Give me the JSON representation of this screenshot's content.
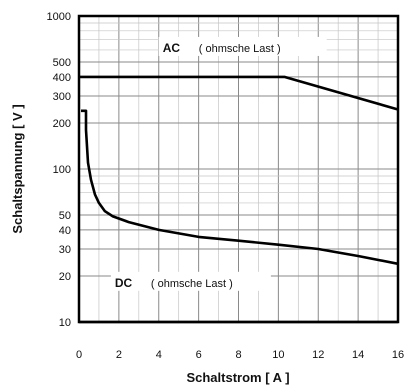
{
  "chart_data": {
    "type": "line",
    "xlabel": "Schaltstrom [ A ]",
    "ylabel": "Schaltspannung [ V ]",
    "x_scale": "linear",
    "y_scale": "log",
    "xlim": [
      0,
      16
    ],
    "ylim": [
      10,
      1000
    ],
    "x_ticks": [
      0,
      2,
      4,
      6,
      8,
      10,
      12,
      14,
      16
    ],
    "y_ticks": [
      10,
      20,
      30,
      40,
      50,
      100,
      200,
      300,
      400,
      500,
      1000
    ],
    "grid": true,
    "series": [
      {
        "name": "AC",
        "note": "( ohmsche Last )",
        "points": [
          [
            0,
            400
          ],
          [
            10.3,
            400
          ],
          [
            16,
            245
          ]
        ]
      },
      {
        "name": "DC",
        "note": "( ohmsche Last )",
        "points": [
          [
            0.1,
            240
          ],
          [
            0.35,
            240
          ],
          [
            0.35,
            180
          ],
          [
            0.45,
            110
          ],
          [
            0.6,
            85
          ],
          [
            0.8,
            68
          ],
          [
            1.0,
            60
          ],
          [
            1.3,
            53
          ],
          [
            1.7,
            49
          ],
          [
            2.5,
            45
          ],
          [
            4,
            40
          ],
          [
            6,
            36
          ],
          [
            8,
            34
          ],
          [
            10,
            32
          ],
          [
            12,
            30
          ],
          [
            14,
            27
          ],
          [
            16,
            24
          ]
        ]
      }
    ]
  }
}
